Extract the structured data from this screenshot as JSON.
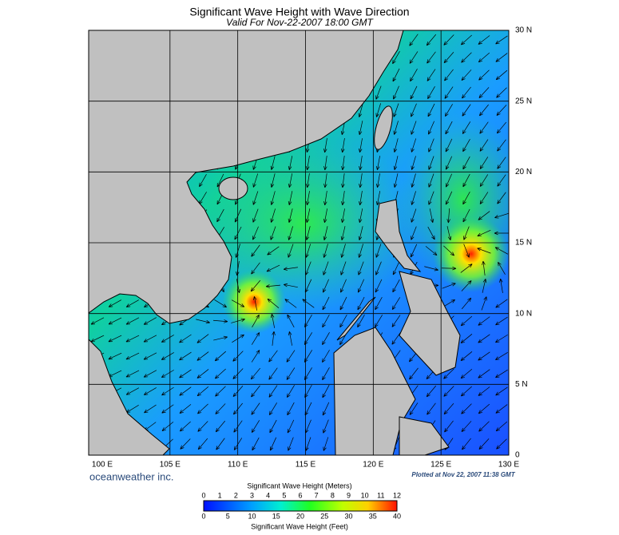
{
  "title": "Significant Wave Height with Wave Direction",
  "subtitle": "Valid For Nov-22-2007 18:00 GMT",
  "lat_labels": [
    "30 N",
    "25 N",
    "20 N",
    "15 N",
    "10 N",
    "5 N",
    "0"
  ],
  "lon_labels": [
    "100 E",
    "105 E",
    "110 E",
    "115 E",
    "120 E",
    "125 E",
    "130 E"
  ],
  "credit": "oceanweather inc.",
  "plotted": "Plotted at Nov 22, 2007 11:38 GMT",
  "legend": {
    "meters_title": "Significant Wave Height (Meters)",
    "meters_ticks": [
      0,
      1,
      2,
      3,
      4,
      5,
      6,
      7,
      8,
      9,
      10,
      11,
      12
    ],
    "feet_ticks": [
      0,
      5,
      10,
      15,
      20,
      25,
      30,
      35,
      40
    ],
    "feet_title": "Significant Wave Height (Feet)"
  }
}
